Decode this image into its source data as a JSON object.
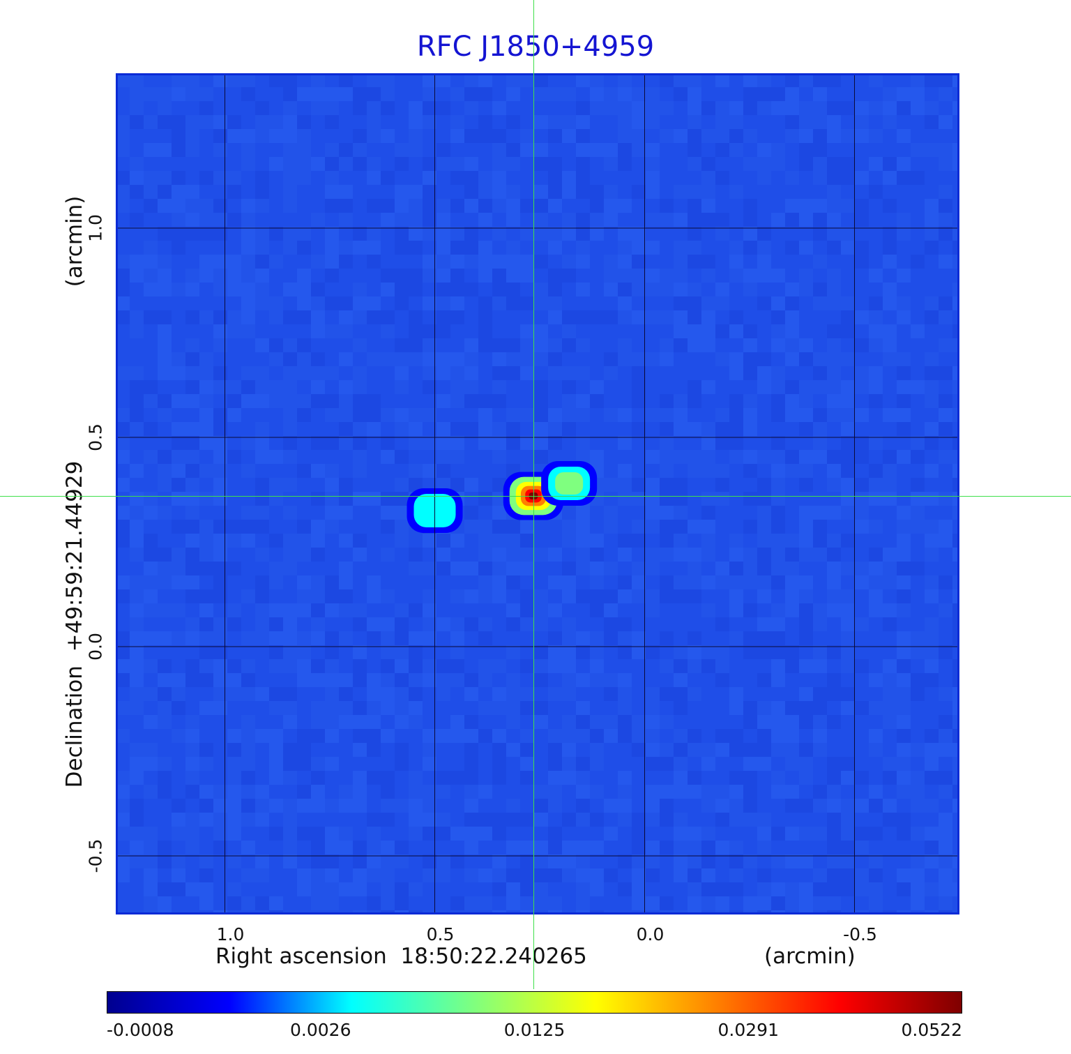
{
  "chart_data": {
    "type": "heatmap",
    "title": "RFC J1850+4959",
    "xlabel": "Right ascension  18:50:22.240265",
    "x_unit": "(arcmin)",
    "ylabel": "Declination  +49:59:21.44929",
    "y_unit": "(arcmin)",
    "xlim": [
      1.26,
      -0.75
    ],
    "ylim": [
      -0.64,
      1.37
    ],
    "x_ticks": [
      {
        "value": 1.0,
        "label": "1.0"
      },
      {
        "value": 0.5,
        "label": "0.5"
      },
      {
        "value": 0.0,
        "label": "0.0"
      },
      {
        "value": -0.5,
        "label": "-0.5"
      }
    ],
    "y_ticks": [
      {
        "value": 1.0,
        "label": "1.0"
      },
      {
        "value": 0.5,
        "label": "0.5"
      },
      {
        "value": 0.0,
        "label": "0.0"
      },
      {
        "value": -0.5,
        "label": "-0.5"
      }
    ],
    "grid": true,
    "crosshair": {
      "x": 0.265,
      "y": 0.36
    },
    "sources": [
      {
        "x": 0.265,
        "y": 0.36,
        "peak": 0.0522
      },
      {
        "x": 0.18,
        "y": 0.39,
        "peak": 0.0085
      },
      {
        "x": 0.5,
        "y": 0.325,
        "peak": 0.0075
      }
    ],
    "colormap": "jet",
    "colorbar": {
      "ticks": [
        "-0.0008",
        "0.0026",
        "0.0125",
        "0.0291",
        "0.0522"
      ],
      "colors": [
        "#00008f",
        "#0000ff",
        "#00ffff",
        "#7fff7f",
        "#ffff00",
        "#ff7f00",
        "#ff0000",
        "#7f0000"
      ]
    }
  }
}
